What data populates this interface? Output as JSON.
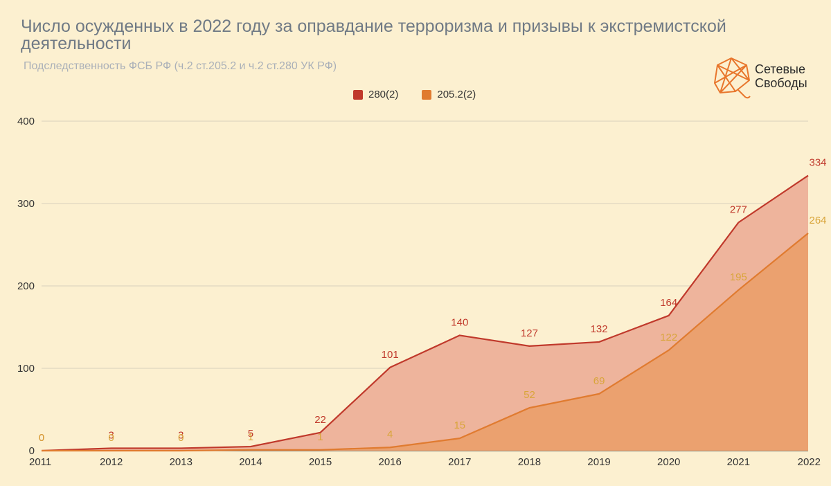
{
  "chart_data": {
    "type": "area",
    "title": "Число осужденных в 2022 году за оправдание терроризма и призывы к экстремистской деятельности",
    "subtitle": "Подследственность ФСБ РФ (ч.2 ст.205.2 и ч.2 ст.280 УК РФ)",
    "x": [
      "2011",
      "2012",
      "2013",
      "2014",
      "2015",
      "2016",
      "2017",
      "2018",
      "2019",
      "2020",
      "2021",
      "2022"
    ],
    "series": [
      {
        "name": "280(2)",
        "color": "#c0392b",
        "fill": "#eeb49c",
        "values": [
          0,
          3,
          3,
          5,
          22,
          101,
          140,
          127,
          132,
          164,
          277,
          334
        ]
      },
      {
        "name": "205.2(2)",
        "color": "#e07b30",
        "fill": "#eba16f",
        "values": [
          0,
          0,
          0,
          1,
          1,
          4,
          15,
          52,
          69,
          122,
          195,
          264
        ]
      }
    ],
    "y_ticks": [
      "0",
      "100",
      "200",
      "300",
      "400"
    ],
    "ylim": [
      0,
      400
    ],
    "grid": true,
    "legend_position": "top-center",
    "label_colors": {
      "280(2)": "#c0392b",
      "205.2(2)": "#d9a53a"
    }
  },
  "logo": {
    "line1": "Сетевые",
    "line2": "Свободы",
    "color": "#e8762c"
  }
}
